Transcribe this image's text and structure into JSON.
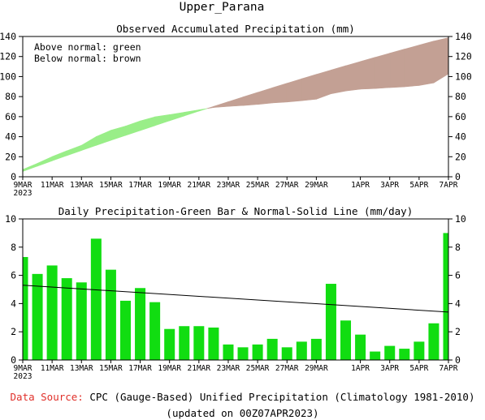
{
  "page_title": "Upper_Parana",
  "colors": {
    "above_normal": "#99ee88",
    "below_normal": "#c3a094",
    "daily_bar": "#11dd11",
    "normal_line": "#000000",
    "source_label": "#e0302a"
  },
  "chart_data": [
    {
      "type": "area",
      "title": "Observed Accumulated Precipitation (mm)",
      "legend_lines": [
        "Above normal: green",
        "Below normal: brown"
      ],
      "legend_position": "top-left",
      "x_tick_labels": [
        "9MAR",
        "11MAR",
        "13MAR",
        "15MAR",
        "17MAR",
        "19MAR",
        "21MAR",
        "23MAR",
        "25MAR",
        "27MAR",
        "29MAR",
        "1APR",
        "3APR",
        "5APR",
        "7APR"
      ],
      "x_tick_days": [
        0,
        2,
        4,
        6,
        8,
        10,
        12,
        14,
        16,
        18,
        20,
        23,
        25,
        27,
        29
      ],
      "x_start_year_label": "2023",
      "ylim": [
        0,
        140
      ],
      "y_ticks": [
        0,
        20,
        40,
        60,
        80,
        100,
        120,
        140
      ],
      "grid": false,
      "days": [
        "9MAR",
        "10MAR",
        "11MAR",
        "12MAR",
        "13MAR",
        "14MAR",
        "15MAR",
        "16MAR",
        "17MAR",
        "18MAR",
        "19MAR",
        "20MAR",
        "21MAR",
        "22MAR",
        "23MAR",
        "24MAR",
        "25MAR",
        "26MAR",
        "27MAR",
        "28MAR",
        "29MAR",
        "30MAR",
        "31MAR",
        "1APR",
        "2APR",
        "3APR",
        "4APR",
        "5APR",
        "6APR",
        "7APR"
      ],
      "series": [
        {
          "name": "Observed",
          "values": [
            7.3,
            13.4,
            20.1,
            25.9,
            31.4,
            40.0,
            46.4,
            50.6,
            55.7,
            59.8,
            62.0,
            64.4,
            66.8,
            69.1,
            70.2,
            71.1,
            72.2,
            73.7,
            74.6,
            75.9,
            77.4,
            82.8,
            85.6,
            87.4,
            88.0,
            89.0,
            89.8,
            91.1,
            93.7,
            102.7
          ]
        },
        {
          "name": "Normal",
          "values": [
            5.3,
            10.6,
            15.9,
            21.1,
            26.2,
            31.3,
            36.3,
            41.2,
            46.1,
            51.0,
            55.9,
            60.7,
            65.5,
            70.2,
            74.9,
            79.6,
            84.2,
            88.8,
            93.3,
            97.8,
            102.2,
            106.5,
            110.8,
            115.0,
            119.2,
            123.3,
            127.4,
            131.4,
            135.4,
            138.8
          ]
        }
      ]
    },
    {
      "type": "bar",
      "title": "Daily Precipitation-Green Bar & Normal-Solid Line (mm/day)",
      "x_tick_labels": [
        "9MAR",
        "11MAR",
        "13MAR",
        "15MAR",
        "17MAR",
        "19MAR",
        "21MAR",
        "23MAR",
        "25MAR",
        "27MAR",
        "29MAR",
        "1APR",
        "3APR",
        "5APR",
        "7APR"
      ],
      "x_tick_days": [
        0,
        2,
        4,
        6,
        8,
        10,
        12,
        14,
        16,
        18,
        20,
        23,
        25,
        27,
        29
      ],
      "x_start_year_label": "2023",
      "ylim": [
        0,
        10
      ],
      "y_ticks": [
        0,
        2,
        4,
        6,
        8,
        10
      ],
      "grid": false,
      "categories": [
        "9MAR",
        "10MAR",
        "11MAR",
        "12MAR",
        "13MAR",
        "14MAR",
        "15MAR",
        "16MAR",
        "17MAR",
        "18MAR",
        "19MAR",
        "20MAR",
        "21MAR",
        "22MAR",
        "23MAR",
        "24MAR",
        "25MAR",
        "26MAR",
        "27MAR",
        "28MAR",
        "29MAR",
        "30MAR",
        "31MAR",
        "1APR",
        "2APR",
        "3APR",
        "4APR",
        "5APR",
        "6APR",
        "7APR"
      ],
      "series": [
        {
          "name": "Daily Precipitation",
          "values": [
            7.3,
            6.1,
            6.7,
            5.8,
            5.5,
            8.6,
            6.4,
            4.2,
            5.1,
            4.1,
            2.2,
            2.4,
            2.4,
            2.3,
            1.1,
            0.9,
            1.1,
            1.5,
            0.9,
            1.3,
            1.5,
            5.4,
            2.8,
            1.8,
            0.6,
            1.0,
            0.8,
            1.3,
            2.6,
            9.0
          ]
        },
        {
          "name": "Normal",
          "line_start": 5.3,
          "line_end": 3.4
        }
      ]
    }
  ],
  "footer": {
    "source_label": "Data Source:",
    "source_text": " CPC (Gauge-Based) Unified Precipitation (Climatology 1981-2010)",
    "updated": "(updated on 00Z07APR2023)"
  }
}
